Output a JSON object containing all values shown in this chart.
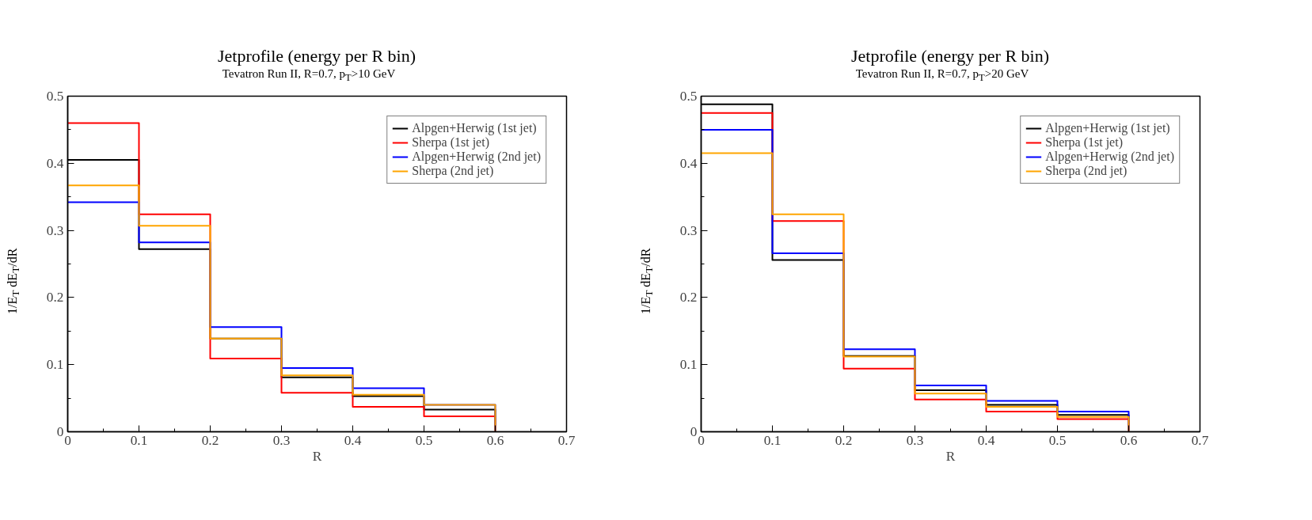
{
  "chart_data": [
    {
      "type": "histogram",
      "title": "Jetprofile (energy per R bin)",
      "subtitle": "Tevatron Run II, R=0.7, p$_{T}$>10 GeV",
      "xlabel": "R",
      "ylabel": "1/E$_{T}$ dE$_{T}$/dR",
      "bins": [
        0,
        0.1,
        0.2,
        0.3,
        0.4,
        0.5,
        0.6
      ],
      "series": [
        {
          "name": "Alpgen+Herwig (1st jet)",
          "color": "#000000",
          "values": [
            0.405,
            0.272,
            0.139,
            0.081,
            0.053,
            0.033
          ]
        },
        {
          "name": "Sherpa (1st jet)",
          "color": "#ff0000",
          "values": [
            0.46,
            0.324,
            0.109,
            0.058,
            0.037,
            0.023
          ]
        },
        {
          "name": "Alpgen+Herwig (2nd jet)",
          "color": "#0000ff",
          "values": [
            0.342,
            0.282,
            0.156,
            0.095,
            0.065,
            0.04
          ]
        },
        {
          "name": "Sherpa (2nd jet)",
          "color": "#ffa500",
          "values": [
            0.367,
            0.307,
            0.139,
            0.084,
            0.055,
            0.04
          ]
        }
      ],
      "xlim": [
        0,
        0.7
      ],
      "ylim": [
        0,
        0.5
      ],
      "xticks": [
        0,
        {
          "value": 0.05,
          "label": null
        },
        0.1,
        {
          "value": 0.15,
          "label": null
        },
        0.2,
        {
          "value": 0.25,
          "label": null
        },
        0.3,
        {
          "value": 0.35,
          "label": null
        },
        0.4,
        {
          "value": 0.45,
          "label": null
        },
        0.5,
        {
          "value": 0.55,
          "label": null
        },
        0.6,
        {
          "value": 0.65,
          "label": null
        },
        0.7
      ],
      "yticks": [
        0,
        {
          "value": 0.05,
          "label": null
        },
        0.1,
        {
          "value": 0.15,
          "label": null
        },
        0.2,
        {
          "value": 0.25,
          "label": null
        },
        0.3,
        {
          "value": 0.35,
          "label": null
        },
        0.4,
        {
          "value": 0.45,
          "label": null
        },
        0.5
      ],
      "legend": "top right",
      "grid": false
    },
    {
      "type": "histogram",
      "title": "Jetprofile (energy per R bin)",
      "subtitle": "Tevatron Run II, R=0.7, p$_{T}$>20 GeV",
      "xlabel": "R",
      "ylabel": "1/E$_{T}$ dE$_{T}$/dR",
      "bins": [
        0,
        0.1,
        0.2,
        0.3,
        0.4,
        0.5,
        0.6
      ],
      "series": [
        {
          "name": "Alpgen+Herwig (1st jet)",
          "color": "#000000",
          "values": [
            0.488,
            0.256,
            0.113,
            0.062,
            0.04,
            0.025
          ]
        },
        {
          "name": "Sherpa (1st jet)",
          "color": "#ff0000",
          "values": [
            0.475,
            0.314,
            0.094,
            0.048,
            0.03,
            0.019
          ]
        },
        {
          "name": "Alpgen+Herwig (2nd jet)",
          "color": "#0000ff",
          "values": [
            0.45,
            0.266,
            0.123,
            0.069,
            0.046,
            0.03
          ]
        },
        {
          "name": "Sherpa (2nd jet)",
          "color": "#ffa500",
          "values": [
            0.415,
            0.324,
            0.112,
            0.057,
            0.037,
            0.022
          ]
        }
      ],
      "xlim": [
        0,
        0.7
      ],
      "ylim": [
        0,
        0.5
      ],
      "xticks": [
        0,
        {
          "value": 0.05,
          "label": null
        },
        0.1,
        {
          "value": 0.15,
          "label": null
        },
        0.2,
        {
          "value": 0.25,
          "label": null
        },
        0.3,
        {
          "value": 0.35,
          "label": null
        },
        0.4,
        {
          "value": 0.45,
          "label": null
        },
        0.5,
        {
          "value": 0.55,
          "label": null
        },
        0.6,
        {
          "value": 0.65,
          "label": null
        },
        0.7
      ],
      "yticks": [
        0,
        {
          "value": 0.05,
          "label": null
        },
        0.1,
        {
          "value": 0.15,
          "label": null
        },
        0.2,
        {
          "value": 0.25,
          "label": null
        },
        0.3,
        {
          "value": 0.35,
          "label": null
        },
        0.4,
        {
          "value": 0.45,
          "label": null
        },
        0.5
      ],
      "legend": "top right",
      "grid": false
    }
  ]
}
